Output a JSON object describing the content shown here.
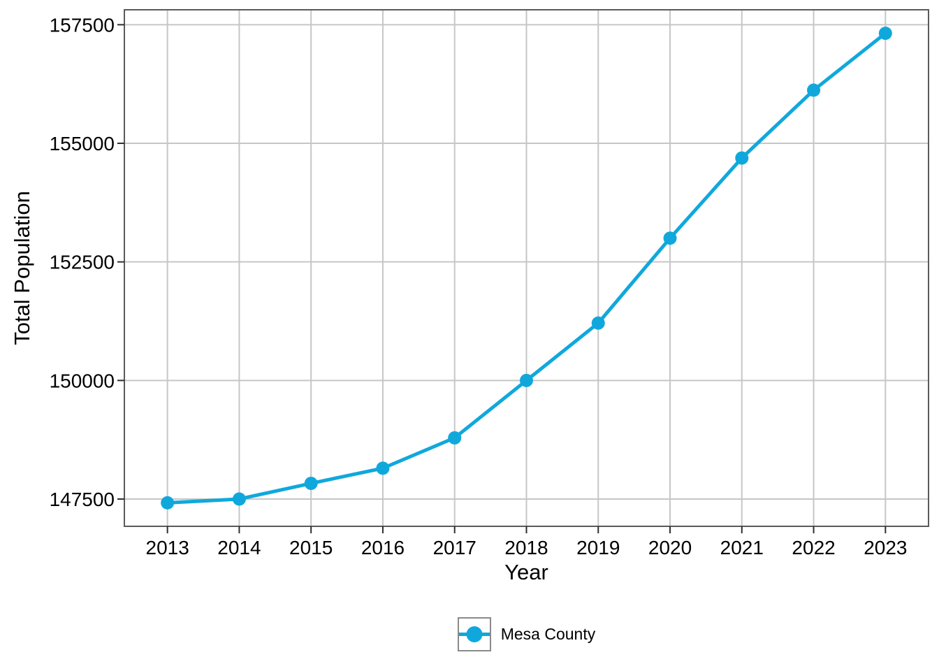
{
  "chart_data": {
    "type": "line",
    "title": "",
    "xlabel": "Year",
    "ylabel": "Total Population",
    "categories": [
      "2013",
      "2014",
      "2015",
      "2016",
      "2017",
      "2018",
      "2019",
      "2020",
      "2021",
      "2022",
      "2023"
    ],
    "series": [
      {
        "name": "Mesa County",
        "values": [
          147420,
          147500,
          147830,
          148150,
          148790,
          150000,
          151210,
          153000,
          154690,
          156120,
          157320
        ]
      }
    ],
    "yticks": [
      147500,
      150000,
      152500,
      155000,
      157500
    ],
    "ylim": [
      146925,
      157815
    ],
    "grid": true,
    "legend_position": "bottom",
    "marker": "circle"
  },
  "colors": {
    "series": "#10A8DC",
    "grid": "#C6C6C6",
    "panel_border": "#5A5A5A",
    "tick": "#2E2E2E",
    "text": "#000000",
    "legend_border": "#8A8A8A",
    "background": "#FFFFFF"
  }
}
